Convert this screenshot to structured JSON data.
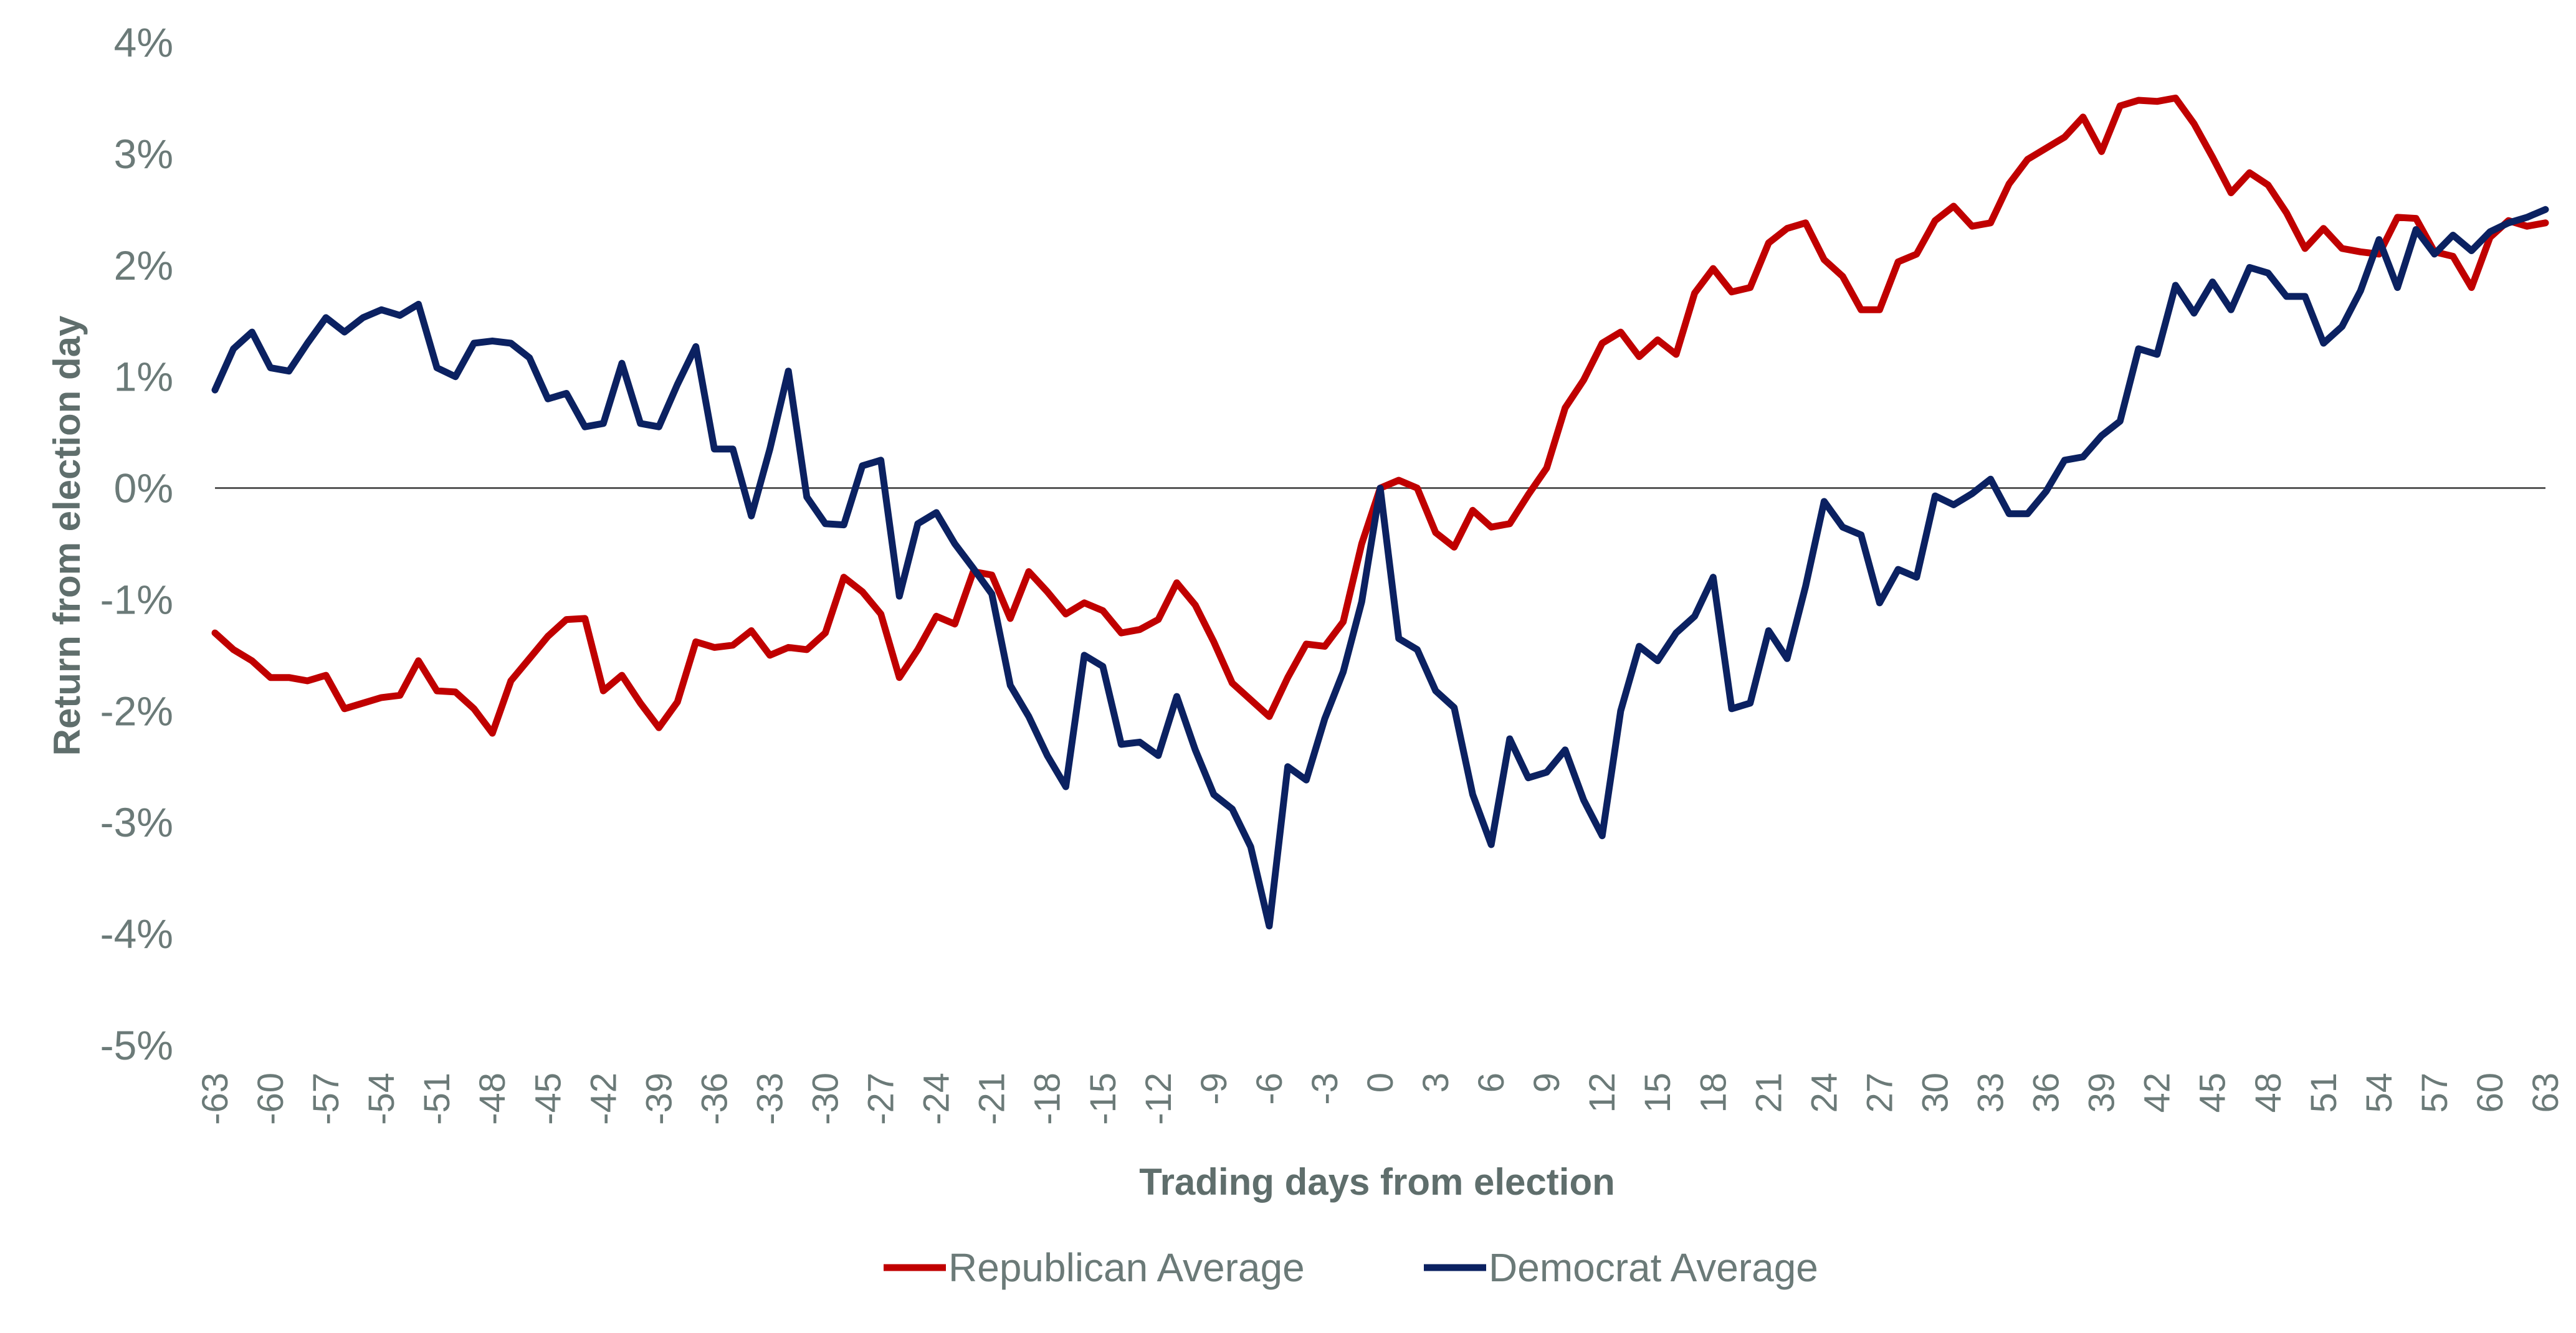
{
  "chart_data": {
    "type": "line",
    "title": "",
    "xlabel": "Trading days from election",
    "ylabel": "Return from election day",
    "xlim": [
      -63,
      63
    ],
    "ylim": [
      -5,
      4
    ],
    "grid": false,
    "zero_line": true,
    "legend_position": "bottom-center",
    "x_ticks": [
      -63,
      -60,
      -57,
      -54,
      -51,
      -48,
      -45,
      -42,
      -39,
      -36,
      -33,
      -30,
      -27,
      -24,
      -21,
      -18,
      -15,
      -12,
      -9,
      -6,
      -3,
      0,
      3,
      6,
      9,
      12,
      15,
      18,
      21,
      24,
      27,
      30,
      33,
      36,
      39,
      42,
      45,
      48,
      51,
      54,
      57,
      60,
      63
    ],
    "x_tick_labels": [
      "-63",
      "-60",
      "-57",
      "-54",
      "-51",
      "-48",
      "-45",
      "-42",
      "-39",
      "-36",
      "-33",
      "-30",
      "-27",
      "-24",
      "-21",
      "-18",
      "-15",
      "-12",
      "-9",
      "-6",
      "-3",
      "0",
      "3",
      "6",
      "9",
      "12",
      "15",
      "18",
      "21",
      "24",
      "27",
      "30",
      "33",
      "36",
      "39",
      "42",
      "45",
      "48",
      "51",
      "54",
      "57",
      "60",
      "63"
    ],
    "y_ticks": [
      4,
      3,
      2,
      1,
      0,
      -1,
      -2,
      -3,
      -4,
      -5
    ],
    "y_tick_labels": [
      "4%",
      "3%",
      "2%",
      "1%",
      "0%",
      "-1%",
      "-2%",
      "-3%",
      "-4%",
      "-5%"
    ],
    "series": [
      {
        "name": "Republican Average",
        "color": "#c00000",
        "x": [
          -63,
          -62,
          -61,
          -60,
          -59,
          -58,
          -57,
          -56,
          -55,
          -54,
          -53,
          -52,
          -51,
          -50,
          -49,
          -48,
          -47,
          -46,
          -45,
          -44,
          -43,
          -42,
          -41,
          -40,
          -39,
          -38,
          -37,
          -36,
          -35,
          -34,
          -33,
          -32,
          -31,
          -30,
          -29,
          -28,
          -27,
          -26,
          -25,
          -24,
          -23,
          -22,
          -21,
          -20,
          -19,
          -18,
          -17,
          -16,
          -15,
          -14,
          -13,
          -12,
          -11,
          -10,
          -9,
          -8,
          -7,
          -6,
          -5,
          -4,
          -3,
          -2,
          -1,
          0,
          1,
          2,
          3,
          4,
          5,
          6,
          7,
          8,
          9,
          10,
          11,
          12,
          13,
          14,
          15,
          16,
          17,
          18,
          19,
          20,
          21,
          22,
          23,
          24,
          25,
          26,
          27,
          28,
          29,
          30,
          31,
          32,
          33,
          34,
          35,
          36,
          37,
          38,
          39,
          40,
          41,
          42,
          43,
          44,
          45,
          46,
          47,
          48,
          49,
          50,
          51,
          52,
          53,
          54,
          55,
          56,
          57,
          58,
          59,
          60,
          61,
          62,
          63
        ],
        "values": [
          -1.3,
          -1.45,
          -1.55,
          -1.7,
          -1.7,
          -1.73,
          -1.68,
          -1.98,
          -1.93,
          -1.88,
          -1.86,
          -1.55,
          -1.82,
          -1.83,
          -1.98,
          -2.2,
          -1.73,
          -1.53,
          -1.33,
          -1.18,
          -1.17,
          -1.82,
          -1.68,
          -1.93,
          -2.15,
          -1.92,
          -1.38,
          -1.43,
          -1.41,
          -1.28,
          -1.5,
          -1.43,
          -1.45,
          -1.3,
          -0.8,
          -0.93,
          -1.13,
          -1.7,
          -1.45,
          -1.15,
          -1.22,
          -0.75,
          -0.78,
          -1.17,
          -0.75,
          -0.93,
          -1.13,
          -1.03,
          -1.1,
          -1.3,
          -1.27,
          -1.18,
          -0.85,
          -1.05,
          -1.38,
          -1.75,
          -1.9,
          -2.05,
          -1.7,
          -1.4,
          -1.42,
          -1.2,
          -0.5,
          0.0,
          0.07,
          0.0,
          -0.4,
          -0.53,
          -0.2,
          -0.35,
          -0.32,
          -0.06,
          0.18,
          0.72,
          0.97,
          1.3,
          1.4,
          1.18,
          1.33,
          1.2,
          1.75,
          1.97,
          1.76,
          1.8,
          2.2,
          2.33,
          2.38,
          2.05,
          1.9,
          1.6,
          1.6,
          2.03,
          2.1,
          2.4,
          2.53,
          2.35,
          2.38,
          2.73,
          2.95,
          3.05,
          3.15,
          3.33,
          3.02,
          3.43,
          3.48,
          3.47,
          3.5,
          3.27,
          2.97,
          2.65,
          2.83,
          2.72,
          2.47,
          2.15,
          2.33,
          2.15,
          2.12,
          2.1,
          2.43,
          2.42,
          2.12,
          2.08,
          1.8,
          2.25,
          2.4,
          2.35,
          2.38
        ]
      },
      {
        "name": "Democrat Average",
        "color": "#0b2161",
        "x": [
          -63,
          -62,
          -61,
          -60,
          -59,
          -58,
          -57,
          -56,
          -55,
          -54,
          -53,
          -52,
          -51,
          -50,
          -49,
          -48,
          -47,
          -46,
          -45,
          -44,
          -43,
          -42,
          -41,
          -40,
          -39,
          -38,
          -37,
          -36,
          -35,
          -34,
          -33,
          -32,
          -31,
          -30,
          -29,
          -28,
          -27,
          -26,
          -25,
          -24,
          -23,
          -22,
          -21,
          -20,
          -19,
          -18,
          -17,
          -16,
          -15,
          -14,
          -13,
          -12,
          -11,
          -10,
          -9,
          -8,
          -7,
          -6,
          -5,
          -4,
          -3,
          -2,
          -1,
          0,
          1,
          2,
          3,
          4,
          5,
          6,
          7,
          8,
          9,
          10,
          11,
          12,
          13,
          14,
          15,
          16,
          17,
          18,
          19,
          20,
          21,
          22,
          23,
          24,
          25,
          26,
          27,
          28,
          29,
          30,
          31,
          32,
          33,
          34,
          35,
          36,
          37,
          38,
          39,
          40,
          41,
          42,
          43,
          44,
          45,
          46,
          47,
          48,
          49,
          50,
          51,
          52,
          53,
          54,
          55,
          56,
          57,
          58,
          59,
          60,
          61,
          62,
          63
        ],
        "values": [
          0.88,
          1.25,
          1.4,
          1.08,
          1.05,
          1.3,
          1.53,
          1.4,
          1.53,
          1.6,
          1.55,
          1.65,
          1.08,
          1.0,
          1.3,
          1.32,
          1.3,
          1.17,
          0.8,
          0.85,
          0.55,
          0.58,
          1.12,
          0.58,
          0.55,
          0.93,
          1.27,
          0.35,
          0.35,
          -0.25,
          0.35,
          1.05,
          -0.08,
          -0.32,
          -0.33,
          0.2,
          0.25,
          -0.97,
          -0.32,
          -0.22,
          -0.5,
          -0.72,
          -0.95,
          -1.77,
          -2.05,
          -2.4,
          -2.68,
          -1.5,
          -1.6,
          -2.3,
          -2.28,
          -2.4,
          -1.87,
          -2.35,
          -2.75,
          -2.88,
          -3.22,
          -3.93,
          -2.5,
          -2.62,
          -2.07,
          -1.65,
          -1.02,
          0.0,
          -1.35,
          -1.45,
          -1.82,
          -1.97,
          -2.75,
          -3.2,
          -2.25,
          -2.6,
          -2.55,
          -2.35,
          -2.8,
          -3.12,
          -2.0,
          -1.42,
          -1.55,
          -1.3,
          -1.15,
          -0.8,
          -1.98,
          -1.93,
          -1.28,
          -1.53,
          -0.88,
          -0.12,
          -0.35,
          -0.42,
          -1.03,
          -0.73,
          -0.8,
          -0.07,
          -0.15,
          -0.05,
          0.08,
          -0.23,
          -0.23,
          -0.03,
          0.25,
          0.28,
          0.47,
          0.6,
          1.25,
          1.2,
          1.82,
          1.57,
          1.85,
          1.6,
          1.98,
          1.93,
          1.72,
          1.72,
          1.3,
          1.45,
          1.77,
          2.23,
          1.8,
          2.32,
          2.1,
          2.27,
          2.13,
          2.3,
          2.38,
          2.43,
          2.5
        ]
      }
    ]
  }
}
